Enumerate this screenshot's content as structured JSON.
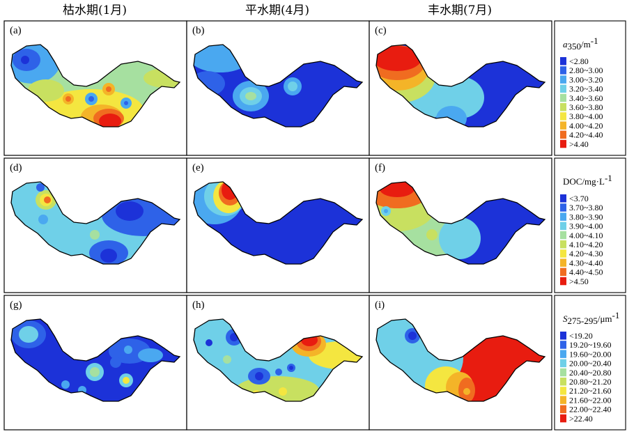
{
  "column_titles": [
    "枯水期(1月)",
    "平水期(4月)",
    "丰水期(7月)"
  ],
  "panel_labels": [
    "(a)",
    "(b)",
    "(c)",
    "(d)",
    "(e)",
    "(f)",
    "(g)",
    "(h)",
    "(i)"
  ],
  "palette": [
    "#1c32d8",
    "#2e62e8",
    "#4aa8f0",
    "#6fd0e8",
    "#a6e0a0",
    "#c8e060",
    "#f4e640",
    "#f4b428",
    "#f06c20",
    "#e81c10"
  ],
  "legends": [
    {
      "title_italic": "a",
      "title_sub": "350",
      "title_rest": "/m",
      "title_sup": "-1",
      "items": [
        "<2.80",
        "2.80~3.00",
        "3.00~3.20",
        "3.20~3.40",
        "3.40~3.60",
        "3.60~3.80",
        "3.80~4.00",
        "4.00~4.20",
        "4.20~4.40",
        ">4.40"
      ]
    },
    {
      "title_italic": "",
      "title_sub": "",
      "title_rest": "DOC/mg·L",
      "title_sup": "-1",
      "items": [
        "<3.70",
        "3.70~3.80",
        "3.80~3.90",
        "3.90~4.00",
        "4.00~4.10",
        "4.10~4.20",
        "4.20~4.30",
        "4.30~4.40",
        "4.40~4.50",
        ">4.50"
      ]
    },
    {
      "title_italic": "S",
      "title_sub": "275-295",
      "title_rest": "/μm",
      "title_sup": "-1",
      "items": [
        "<19.20",
        "19.20~19.60",
        "19.60~20.00",
        "20.00~20.40",
        "20.40~20.80",
        "20.80~21.20",
        "21.20~21.60",
        "21.60~22.00",
        "22.00~22.40",
        ">22.40"
      ]
    }
  ]
}
